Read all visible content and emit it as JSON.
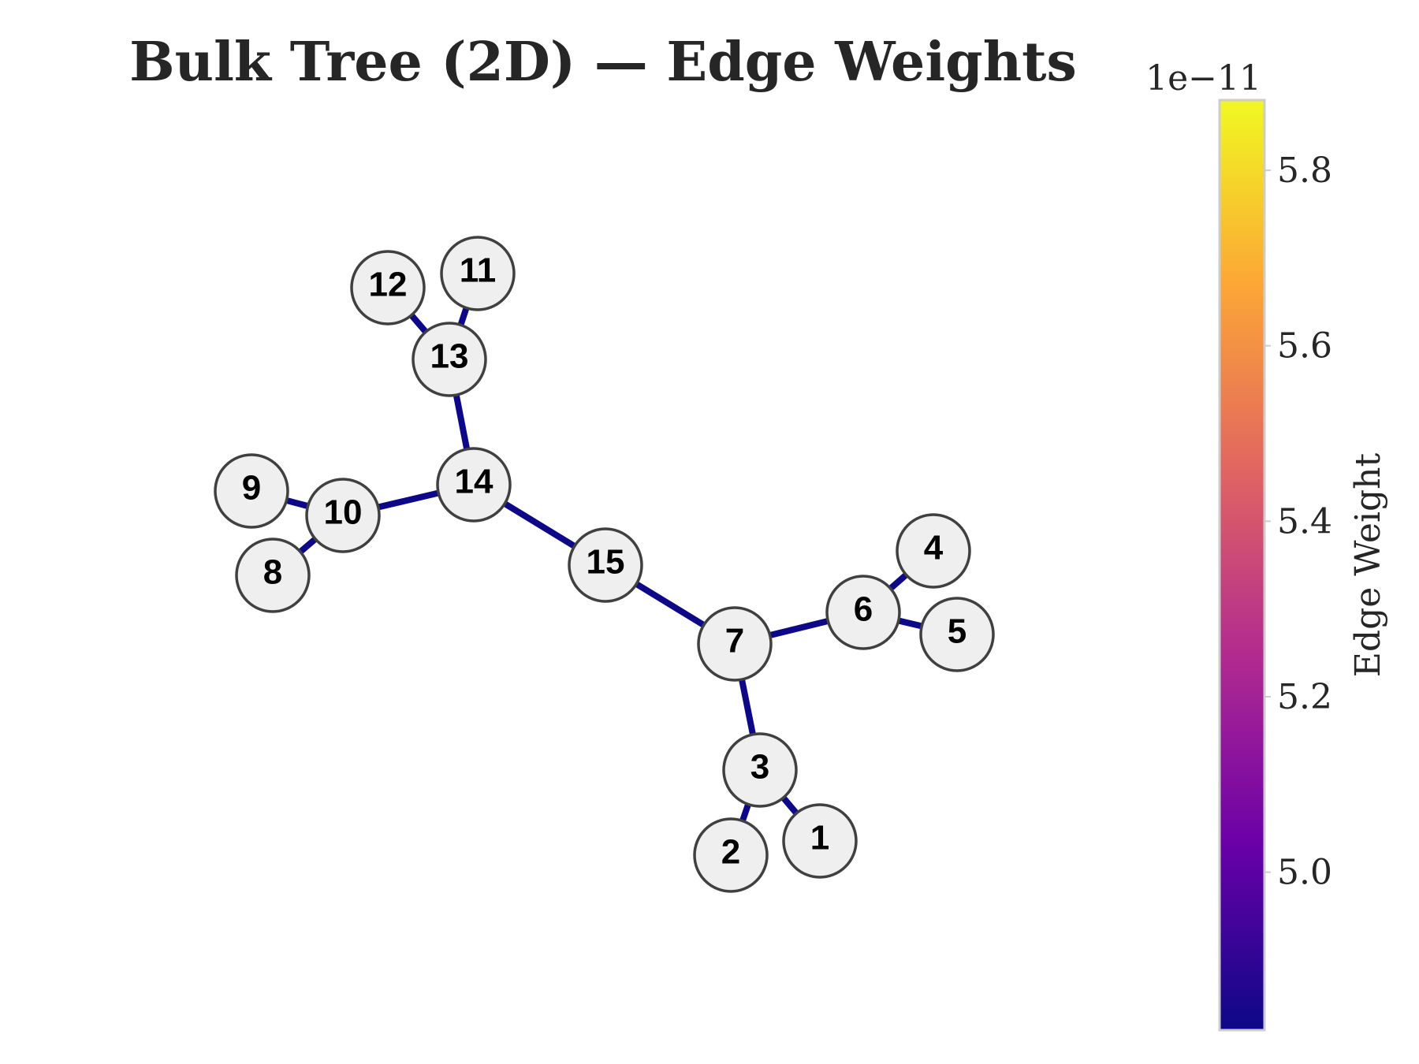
{
  "diagram": {
    "title": "Bulk Tree (2D) — Edge Weights",
    "edge_color": "#0d0887",
    "node_fill": "#efefef",
    "node_stroke": "#404040",
    "nodes": [
      "1",
      "2",
      "3",
      "4",
      "5",
      "6",
      "7",
      "8",
      "9",
      "10",
      "11",
      "12",
      "13",
      "14",
      "15"
    ],
    "edges": [
      [
        "3",
        "1"
      ],
      [
        "3",
        "2"
      ],
      [
        "7",
        "3"
      ],
      [
        "6",
        "4"
      ],
      [
        "6",
        "5"
      ],
      [
        "7",
        "6"
      ],
      [
        "15",
        "7"
      ],
      [
        "10",
        "8"
      ],
      [
        "10",
        "9"
      ],
      [
        "14",
        "10"
      ],
      [
        "13",
        "11"
      ],
      [
        "13",
        "12"
      ],
      [
        "14",
        "13"
      ],
      [
        "15",
        "14"
      ]
    ]
  },
  "colorbar": {
    "label": "Edge Weight",
    "multiplier": "1e−11",
    "colormap": "plasma",
    "colors": [
      "#0d0887",
      "#6a00a8",
      "#b12a90",
      "#e16462",
      "#fca636",
      "#f0f921"
    ],
    "range": [
      4.82,
      5.88
    ],
    "ticks": [
      "5.0",
      "5.2",
      "5.4",
      "5.6",
      "5.8"
    ]
  }
}
